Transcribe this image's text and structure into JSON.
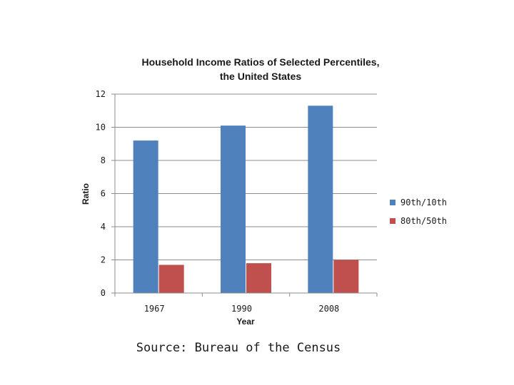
{
  "chart_data": {
    "type": "bar",
    "title_lines": [
      "Household Income Ratios of Selected Percentiles,",
      "the United States"
    ],
    "categories": [
      "1967",
      "1990",
      "2008"
    ],
    "series": [
      {
        "name": "90th/10th",
        "color": "#4f81bd",
        "values": [
          9.2,
          10.1,
          11.3
        ]
      },
      {
        "name": "80th/50th",
        "color": "#c0504d",
        "values": [
          1.7,
          1.8,
          2.0
        ]
      }
    ],
    "xlabel": "Year",
    "ylabel": "Ratio",
    "ylim": [
      0,
      12
    ],
    "yticks": [
      0,
      2,
      4,
      6,
      8,
      10,
      12
    ],
    "grid": true,
    "legend_position": "right"
  },
  "source_text": "Source: Bureau of the Census"
}
